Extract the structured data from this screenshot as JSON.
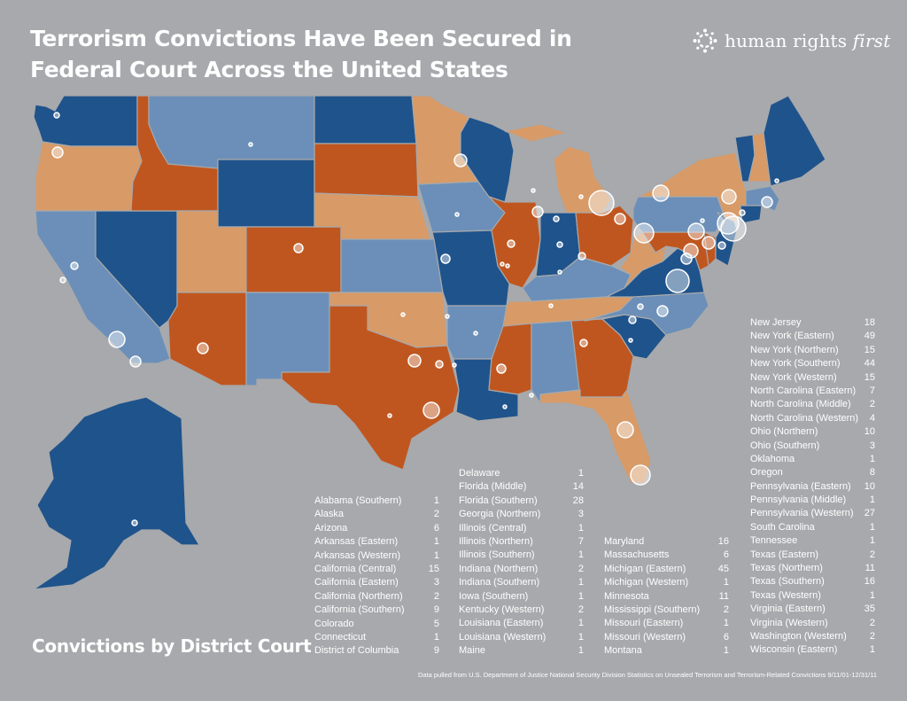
{
  "title": {
    "line1": "Terrorism Convictions Have Been Secured in",
    "line2": "Federal Court Across the United States"
  },
  "logo": {
    "name": "human rights",
    "name_italic": "first",
    "icon": "hrf-logo-icon"
  },
  "colors": {
    "background": "#a7a9ac",
    "dark_blue": "#1f538b",
    "mid_blue": "#6b8fb8",
    "orange": "#c0561f",
    "light_orange": "#d89a66",
    "bubble": "#ffffff"
  },
  "subtitle": "Convictions by District Court",
  "source": "Data pulled from U.S. Department of Justice National Security Division Statistics on Unsealed Terrorism and Terrorism-Related Convictions 9/11/01-12/31/11",
  "columns": [
    [
      {
        "d": "Alabama (Southern)",
        "n": "1"
      },
      {
        "d": "Alaska",
        "n": "2"
      },
      {
        "d": "Arizona",
        "n": "6"
      },
      {
        "d": "Arkansas (Eastern)",
        "n": "1"
      },
      {
        "d": "Arkansas (Western)",
        "n": "1"
      },
      {
        "d": "California (Central)",
        "n": "15"
      },
      {
        "d": "California (Eastern)",
        "n": "3"
      },
      {
        "d": "California (Northern)",
        "n": "2"
      },
      {
        "d": "California (Southern)",
        "n": "9"
      },
      {
        "d": "Colorado",
        "n": "5"
      },
      {
        "d": "Connecticut",
        "n": "1"
      },
      {
        "d": "District of Columbia",
        "n": "9"
      }
    ],
    [
      {
        "d": "Delaware",
        "n": "1"
      },
      {
        "d": "Florida (Middle)",
        "n": "14"
      },
      {
        "d": "Florida (Southern)",
        "n": "28"
      },
      {
        "d": "Georgia (Northern)",
        "n": "3"
      },
      {
        "d": "Illinois (Central)",
        "n": "1"
      },
      {
        "d": "Illinois (Northern)",
        "n": "7"
      },
      {
        "d": "Illinois (Southern)",
        "n": "1"
      },
      {
        "d": "Indiana (Northern)",
        "n": "2"
      },
      {
        "d": "Indiana (Southern)",
        "n": "1"
      },
      {
        "d": "Iowa (Southern)",
        "n": "1"
      },
      {
        "d": "Kentucky (Western)",
        "n": "2"
      },
      {
        "d": "Louisiana (Eastern)",
        "n": "1"
      },
      {
        "d": "Louisiana (Western)",
        "n": "1"
      },
      {
        "d": "Maine",
        "n": "1"
      }
    ],
    [
      {
        "d": "Maryland",
        "n": "16"
      },
      {
        "d": "Massachusetts",
        "n": "6"
      },
      {
        "d": "Michigan (Eastern)",
        "n": "45"
      },
      {
        "d": "Michigan (Western)",
        "n": "1"
      },
      {
        "d": "Minnesota",
        "n": "11"
      },
      {
        "d": "Mississippi (Southern)",
        "n": "2"
      },
      {
        "d": "Missouri (Eastern)",
        "n": "1"
      },
      {
        "d": "Missouri (Western)",
        "n": "6"
      },
      {
        "d": "Montana",
        "n": "1"
      }
    ],
    [
      {
        "d": "New Jersey",
        "n": "18"
      },
      {
        "d": "New York (Eastern)",
        "n": "49"
      },
      {
        "d": "New York (Northern)",
        "n": "15"
      },
      {
        "d": "New York (Southern)",
        "n": "44"
      },
      {
        "d": "New York (Western)",
        "n": "15"
      },
      {
        "d": "North Carolina (Eastern)",
        "n": "7"
      },
      {
        "d": "North Carolina (Middle)",
        "n": "2"
      },
      {
        "d": "North Carolina (Western)",
        "n": "4"
      },
      {
        "d": "Ohio (Northern)",
        "n": "10"
      },
      {
        "d": "Ohio (Southern)",
        "n": "3"
      },
      {
        "d": "Oklahoma",
        "n": "1"
      },
      {
        "d": "Oregon",
        "n": "8"
      },
      {
        "d": "Pennsylvania (Eastern)",
        "n": "10"
      },
      {
        "d": "Pennsylvania (Middle)",
        "n": "1"
      },
      {
        "d": "Pennsylvania (Western)",
        "n": "27"
      },
      {
        "d": "South Carolina",
        "n": "1"
      },
      {
        "d": "Tennessee",
        "n": "1"
      },
      {
        "d": "Texas (Eastern)",
        "n": "2"
      },
      {
        "d": "Texas (Northern)",
        "n": "11"
      },
      {
        "d": "Texas (Southern)",
        "n": "16"
      },
      {
        "d": "Texas (Western)",
        "n": "1"
      },
      {
        "d": "Virginia (Eastern)",
        "n": "35"
      },
      {
        "d": "Virginia (Western)",
        "n": "2"
      },
      {
        "d": "Washington (Western)",
        "n": "2"
      },
      {
        "d": "Wisconsin (Eastern)",
        "n": "1"
      }
    ]
  ],
  "states": [
    {
      "id": "wa",
      "fill": "dark_blue"
    },
    {
      "id": "or",
      "fill": "light_orange"
    },
    {
      "id": "ca",
      "fill": "mid_blue"
    },
    {
      "id": "nv",
      "fill": "dark_blue"
    },
    {
      "id": "id",
      "fill": "orange"
    },
    {
      "id": "mt",
      "fill": "mid_blue"
    },
    {
      "id": "wy",
      "fill": "dark_blue"
    },
    {
      "id": "ut",
      "fill": "light_orange"
    },
    {
      "id": "az",
      "fill": "orange"
    },
    {
      "id": "co",
      "fill": "orange"
    },
    {
      "id": "nm",
      "fill": "mid_blue"
    },
    {
      "id": "nd",
      "fill": "dark_blue"
    },
    {
      "id": "sd",
      "fill": "orange"
    },
    {
      "id": "ne",
      "fill": "light_orange"
    },
    {
      "id": "ks",
      "fill": "mid_blue"
    },
    {
      "id": "ok",
      "fill": "light_orange"
    },
    {
      "id": "tx",
      "fill": "orange"
    },
    {
      "id": "mn",
      "fill": "light_orange"
    },
    {
      "id": "ia",
      "fill": "mid_blue"
    },
    {
      "id": "mo",
      "fill": "dark_blue"
    },
    {
      "id": "ar",
      "fill": "mid_blue"
    },
    {
      "id": "la",
      "fill": "dark_blue"
    },
    {
      "id": "wi",
      "fill": "dark_blue"
    },
    {
      "id": "il",
      "fill": "orange"
    },
    {
      "id": "mi",
      "fill": "light_orange"
    },
    {
      "id": "in",
      "fill": "dark_blue"
    },
    {
      "id": "oh",
      "fill": "orange"
    },
    {
      "id": "ky",
      "fill": "mid_blue"
    },
    {
      "id": "tn",
      "fill": "light_orange"
    },
    {
      "id": "ms",
      "fill": "orange"
    },
    {
      "id": "al",
      "fill": "mid_blue"
    },
    {
      "id": "ga",
      "fill": "orange"
    },
    {
      "id": "fl",
      "fill": "light_orange"
    },
    {
      "id": "sc",
      "fill": "dark_blue"
    },
    {
      "id": "nc",
      "fill": "mid_blue"
    },
    {
      "id": "va",
      "fill": "dark_blue"
    },
    {
      "id": "wv",
      "fill": "light_orange"
    },
    {
      "id": "pa",
      "fill": "mid_blue"
    },
    {
      "id": "ny",
      "fill": "light_orange"
    },
    {
      "id": "vt",
      "fill": "dark_blue"
    },
    {
      "id": "nh",
      "fill": "light_orange"
    },
    {
      "id": "me",
      "fill": "dark_blue"
    },
    {
      "id": "ma",
      "fill": "mid_blue"
    },
    {
      "id": "ct",
      "fill": "dark_blue"
    },
    {
      "id": "nj",
      "fill": "dark_blue"
    },
    {
      "id": "md",
      "fill": "orange"
    },
    {
      "id": "de",
      "fill": "orange"
    },
    {
      "id": "ak",
      "fill": "dark_blue"
    }
  ]
}
